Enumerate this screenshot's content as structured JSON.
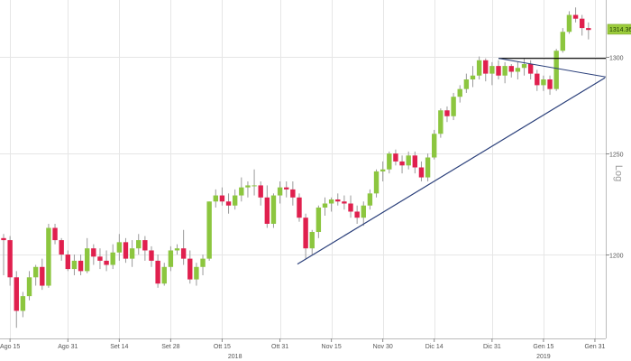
{
  "chart_data": {
    "type": "candlestick",
    "title": "",
    "scale_label": "Log",
    "log_scale": true,
    "ylim": [
      1160,
      1330
    ],
    "y_ticks": [
      1200,
      1250,
      1300
    ],
    "x_ticks": [
      "Ago 15",
      "Ago 31",
      "Set 14",
      "Set 28",
      "Ott 15",
      "Ott 31",
      "Nov 15",
      "Nov 30",
      "Dic 14",
      "Dic 31",
      "Gen 15",
      "Gen 31"
    ],
    "year_labels": [
      "2018",
      "2019"
    ],
    "last_price": "1314.3601",
    "grid": true,
    "colors": {
      "up": "#8cc63f",
      "down": "#e0204e",
      "grid": "#e6e6e6",
      "trendline": "#2a3f7a",
      "resistance": "#000000",
      "price_tag": "#9ccc3c"
    },
    "ohlc": [
      [
        1208,
        1210,
        1190,
        1207
      ],
      [
        1207,
        1209,
        1185,
        1189
      ],
      [
        1189,
        1192,
        1165,
        1173
      ],
      [
        1173,
        1182,
        1170,
        1180
      ],
      [
        1180,
        1192,
        1178,
        1189
      ],
      [
        1189,
        1195,
        1185,
        1194
      ],
      [
        1194,
        1198,
        1183,
        1185
      ],
      [
        1185,
        1215,
        1184,
        1213
      ],
      [
        1213,
        1215,
        1205,
        1207
      ],
      [
        1207,
        1208,
        1197,
        1200
      ],
      [
        1200,
        1202,
        1192,
        1193
      ],
      [
        1193,
        1200,
        1190,
        1197
      ],
      [
        1197,
        1200,
        1190,
        1192
      ],
      [
        1192,
        1208,
        1191,
        1203
      ],
      [
        1203,
        1205,
        1195,
        1199
      ],
      [
        1199,
        1203,
        1193,
        1197
      ],
      [
        1197,
        1202,
        1192,
        1195
      ],
      [
        1195,
        1205,
        1193,
        1201
      ],
      [
        1201,
        1210,
        1197,
        1206
      ],
      [
        1206,
        1208,
        1196,
        1198
      ],
      [
        1198,
        1207,
        1194,
        1203
      ],
      [
        1203,
        1210,
        1200,
        1207
      ],
      [
        1207,
        1209,
        1197,
        1202
      ],
      [
        1202,
        1204,
        1194,
        1197
      ],
      [
        1197,
        1200,
        1184,
        1186
      ],
      [
        1186,
        1196,
        1185,
        1194
      ],
      [
        1194,
        1204,
        1192,
        1202
      ],
      [
        1202,
        1205,
        1200,
        1203
      ],
      [
        1203,
        1212,
        1195,
        1198
      ],
      [
        1198,
        1202,
        1186,
        1188
      ],
      [
        1188,
        1196,
        1185,
        1194
      ],
      [
        1194,
        1200,
        1190,
        1198
      ],
      [
        1198,
        1226,
        1197,
        1226
      ],
      [
        1226,
        1232,
        1223,
        1229
      ],
      [
        1229,
        1233,
        1224,
        1226
      ],
      [
        1226,
        1230,
        1220,
        1224
      ],
      [
        1224,
        1232,
        1222,
        1229
      ],
      [
        1229,
        1238,
        1226,
        1233
      ],
      [
        1233,
        1236,
        1228,
        1234
      ],
      [
        1234,
        1242,
        1229,
        1234
      ],
      [
        1234,
        1236,
        1224,
        1228
      ],
      [
        1228,
        1234,
        1213,
        1215
      ],
      [
        1215,
        1230,
        1213,
        1229
      ],
      [
        1229,
        1236,
        1225,
        1233
      ],
      [
        1233,
        1236,
        1228,
        1232
      ],
      [
        1232,
        1236,
        1224,
        1228
      ],
      [
        1228,
        1230,
        1216,
        1218
      ],
      [
        1218,
        1220,
        1198,
        1203
      ],
      [
        1203,
        1212,
        1200,
        1211
      ],
      [
        1211,
        1224,
        1208,
        1223
      ],
      [
        1223,
        1228,
        1219,
        1225
      ],
      [
        1225,
        1228,
        1221,
        1227
      ],
      [
        1227,
        1230,
        1224,
        1226
      ],
      [
        1226,
        1229,
        1222,
        1225
      ],
      [
        1225,
        1229,
        1218,
        1221
      ],
      [
        1221,
        1224,
        1215,
        1218
      ],
      [
        1218,
        1226,
        1214,
        1224
      ],
      [
        1224,
        1232,
        1222,
        1230
      ],
      [
        1230,
        1242,
        1228,
        1241
      ],
      [
        1241,
        1246,
        1236,
        1242
      ],
      [
        1242,
        1251,
        1240,
        1250
      ],
      [
        1250,
        1252,
        1244,
        1246
      ],
      [
        1246,
        1249,
        1240,
        1244
      ],
      [
        1244,
        1251,
        1242,
        1249
      ],
      [
        1249,
        1251,
        1240,
        1243
      ],
      [
        1243,
        1246,
        1236,
        1238
      ],
      [
        1238,
        1250,
        1236,
        1248
      ],
      [
        1248,
        1262,
        1247,
        1260
      ],
      [
        1260,
        1273,
        1258,
        1272
      ],
      [
        1272,
        1274,
        1266,
        1269
      ],
      [
        1269,
        1281,
        1267,
        1279
      ],
      [
        1279,
        1285,
        1276,
        1283
      ],
      [
        1283,
        1291,
        1281,
        1288
      ],
      [
        1288,
        1295,
        1284,
        1290
      ],
      [
        1290,
        1300,
        1288,
        1298
      ],
      [
        1298,
        1299,
        1287,
        1291
      ],
      [
        1291,
        1297,
        1285,
        1295
      ],
      [
        1295,
        1298,
        1288,
        1290
      ],
      [
        1290,
        1297,
        1286,
        1295
      ],
      [
        1295,
        1296,
        1289,
        1292
      ],
      [
        1292,
        1297,
        1288,
        1294
      ],
      [
        1294,
        1299,
        1290,
        1296
      ],
      [
        1296,
        1298,
        1288,
        1291
      ],
      [
        1291,
        1293,
        1282,
        1285
      ],
      [
        1285,
        1290,
        1282,
        1288
      ],
      [
        1288,
        1290,
        1280,
        1283
      ],
      [
        1283,
        1304,
        1282,
        1303
      ],
      [
        1303,
        1315,
        1302,
        1313
      ],
      [
        1313,
        1324,
        1312,
        1322
      ],
      [
        1322,
        1326,
        1318,
        1320
      ],
      [
        1320,
        1322,
        1311,
        1315
      ],
      [
        1315,
        1318,
        1309,
        1314
      ]
    ],
    "annotations": [
      {
        "type": "trendline",
        "from": [
          46,
          1198
        ],
        "to": [
          93,
          1294
        ]
      },
      {
        "type": "resistance",
        "from": [
          77,
          1299
        ],
        "to": [
          93,
          1299
        ]
      },
      {
        "type": "triangle-upper",
        "from": [
          77,
          1299
        ],
        "to": [
          93,
          1294
        ]
      }
    ]
  }
}
